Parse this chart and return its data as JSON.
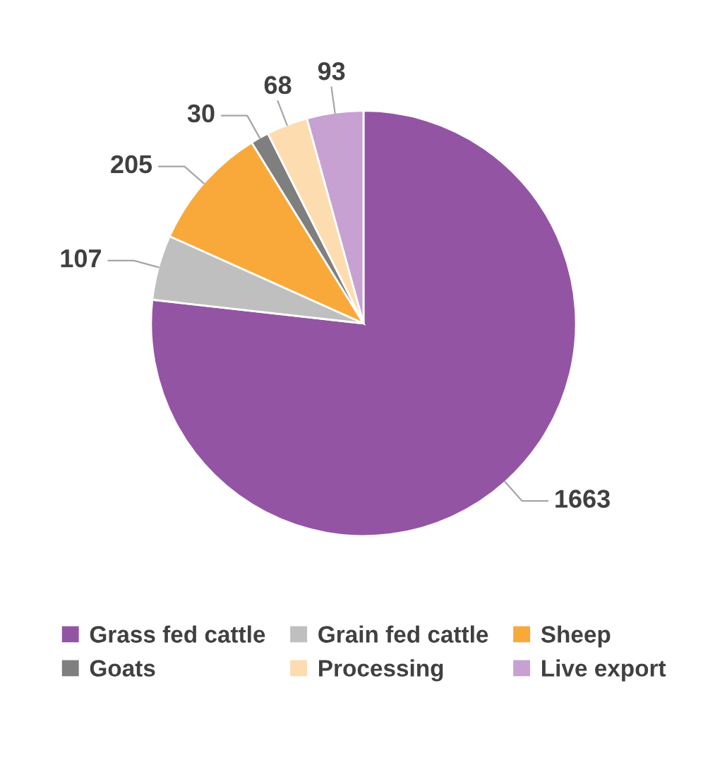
{
  "chart_data": {
    "type": "pie",
    "categories": [
      "Grass fed cattle",
      "Grain fed cattle",
      "Sheep",
      "Goats",
      "Processing",
      "Live export"
    ],
    "values": [
      1663,
      107,
      205,
      30,
      68,
      93
    ],
    "colors": [
      "#9454a4",
      "#bfbfbf",
      "#f9a93a",
      "#7f7f7f",
      "#fddcb0",
      "#c7a1d1"
    ],
    "data_labels": true,
    "legend": "bottom"
  }
}
